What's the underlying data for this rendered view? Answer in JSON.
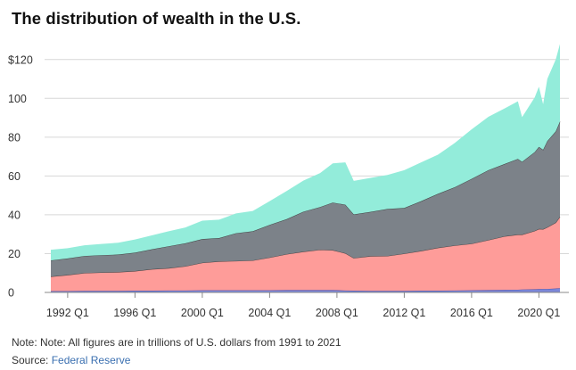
{
  "header": {
    "title": "The distribution of wealth in the U.S."
  },
  "footer": {
    "note": "Note: Note: All figures are in trillions of U.S. dollars from 1991 to 2021",
    "source_label": "Source: ",
    "source_name": "Federal Reserve"
  },
  "colors": {
    "top_band": "#93ecda",
    "gray_band": "#7c8289",
    "red_band": "#fe9c99",
    "blue_band": "#7b86d8",
    "gridline": "#d7d7d7",
    "axis": "#888888"
  },
  "chart_data": {
    "type": "area",
    "stacked": true,
    "title": "The distribution of wealth in the U.S.",
    "xlabel": "",
    "ylabel": "",
    "ylim": [
      0,
      130
    ],
    "xlim": [
      1991.0,
      2021.25
    ],
    "grid": true,
    "y_ticks": [
      0,
      20,
      40,
      60,
      80,
      100,
      120
    ],
    "y_tick_labels": [
      "0",
      "20",
      "40",
      "60",
      "80",
      "100",
      "$120"
    ],
    "x_ticks": [
      1992,
      1996,
      2000,
      2004,
      2008,
      2012,
      2016,
      2020
    ],
    "x_tick_labels": [
      "1992 Q1",
      "1996 Q1",
      "2000 Q1",
      "2004 Q1",
      "2008 Q1",
      "2012 Q1",
      "2016 Q1",
      "2020 Q1"
    ],
    "x": [
      1991.0,
      1992.0,
      1993.0,
      1994.0,
      1995.0,
      1996.0,
      1997.0,
      1998.0,
      1999.0,
      2000.0,
      2001.0,
      2002.0,
      2003.0,
      2004.0,
      2005.0,
      2006.0,
      2007.0,
      2007.75,
      2008.5,
      2009.0,
      2010.0,
      2011.0,
      2012.0,
      2013.0,
      2014.0,
      2015.0,
      2016.0,
      2017.0,
      2018.0,
      2018.75,
      2019.0,
      2019.75,
      2020.0,
      2020.25,
      2020.5,
      2021.0,
      2021.25
    ],
    "series": [
      {
        "name": "Band 1 (blue)",
        "color_key": "blue_band",
        "values": [
          0.7,
          0.7,
          0.8,
          0.8,
          0.8,
          0.9,
          0.9,
          1.0,
          1.0,
          1.1,
          1.1,
          1.1,
          1.1,
          1.1,
          1.2,
          1.2,
          1.2,
          1.2,
          1.0,
          0.9,
          0.8,
          0.8,
          0.8,
          0.9,
          0.9,
          1.0,
          1.1,
          1.2,
          1.3,
          1.4,
          1.5,
          1.6,
          1.7,
          1.8,
          1.8,
          2.0,
          2.2
        ]
      },
      {
        "name": "Band 2 (red)",
        "color_key": "red_band",
        "values": [
          7.5,
          8.3,
          9.2,
          9.5,
          9.7,
          10.1,
          11.1,
          11.5,
          12.5,
          14.2,
          14.9,
          15.1,
          15.4,
          16.9,
          18.5,
          19.8,
          20.8,
          20.6,
          19.2,
          16.8,
          17.9,
          18.0,
          19.2,
          20.5,
          22.1,
          23.2,
          24.0,
          25.8,
          27.7,
          28.4,
          28.3,
          30.1,
          31.0,
          30.8,
          31.8,
          34.0,
          36.8
        ]
      },
      {
        "name": "Band 3 (gray)",
        "color_key": "gray_band",
        "values": [
          8.3,
          8.5,
          8.8,
          8.9,
          9.0,
          9.5,
          10.2,
          11.3,
          11.8,
          12.2,
          12.0,
          14.3,
          15.0,
          16.8,
          18.0,
          20.6,
          22.0,
          24.5,
          25.0,
          22.5,
          22.8,
          24.2,
          23.5,
          25.6,
          27.8,
          30.0,
          33.4,
          36.0,
          37.3,
          39.0,
          37.5,
          40.6,
          42.3,
          40.9,
          44.4,
          47.0,
          49.0
        ]
      },
      {
        "name": "Band 4 (teal)",
        "color_key": "top_band",
        "values": [
          5.5,
          5.3,
          5.5,
          5.8,
          6.1,
          6.8,
          7.2,
          7.7,
          8.2,
          9.5,
          9.5,
          10.2,
          10.5,
          12.2,
          14.5,
          16.0,
          17.5,
          20.2,
          21.8,
          17.3,
          17.5,
          17.5,
          19.5,
          20.0,
          20.2,
          22.8,
          25.5,
          27.5,
          28.7,
          29.7,
          23.0,
          28.2,
          31.0,
          23.5,
          32.0,
          37.0,
          40.0
        ]
      }
    ]
  }
}
